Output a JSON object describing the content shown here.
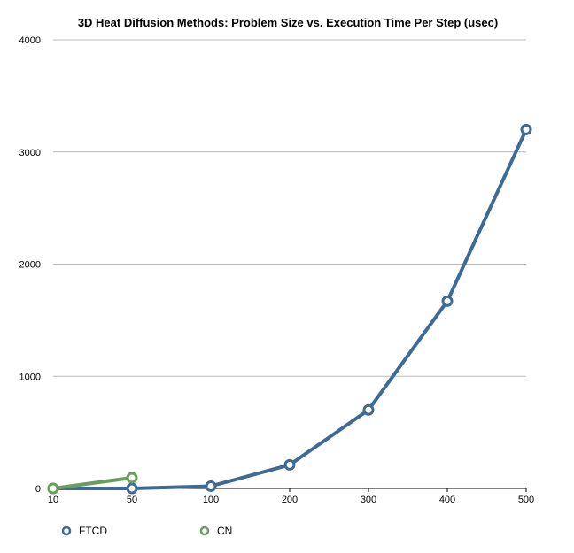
{
  "chart_data": {
    "type": "line",
    "title": "3D Heat Diffusion Methods: Problem Size vs. Execution Time Per Step (usec)",
    "xlabel": "",
    "ylabel": "",
    "categories": [
      "10",
      "50",
      "100",
      "200",
      "300",
      "400",
      "500"
    ],
    "y_ticks": [
      "0",
      "1000",
      "2000",
      "3000",
      "4000"
    ],
    "ylim": [
      0,
      4000
    ],
    "grid": true,
    "legend_position": "bottom-left",
    "series": [
      {
        "name": "FTCD",
        "color": "#3d6b96",
        "values": [
          0,
          0,
          20,
          210,
          700,
          1670,
          3200
        ]
      },
      {
        "name": "CN",
        "color": "#6a9f5b",
        "values": [
          0,
          95,
          null,
          null,
          null,
          null,
          null
        ]
      }
    ]
  }
}
